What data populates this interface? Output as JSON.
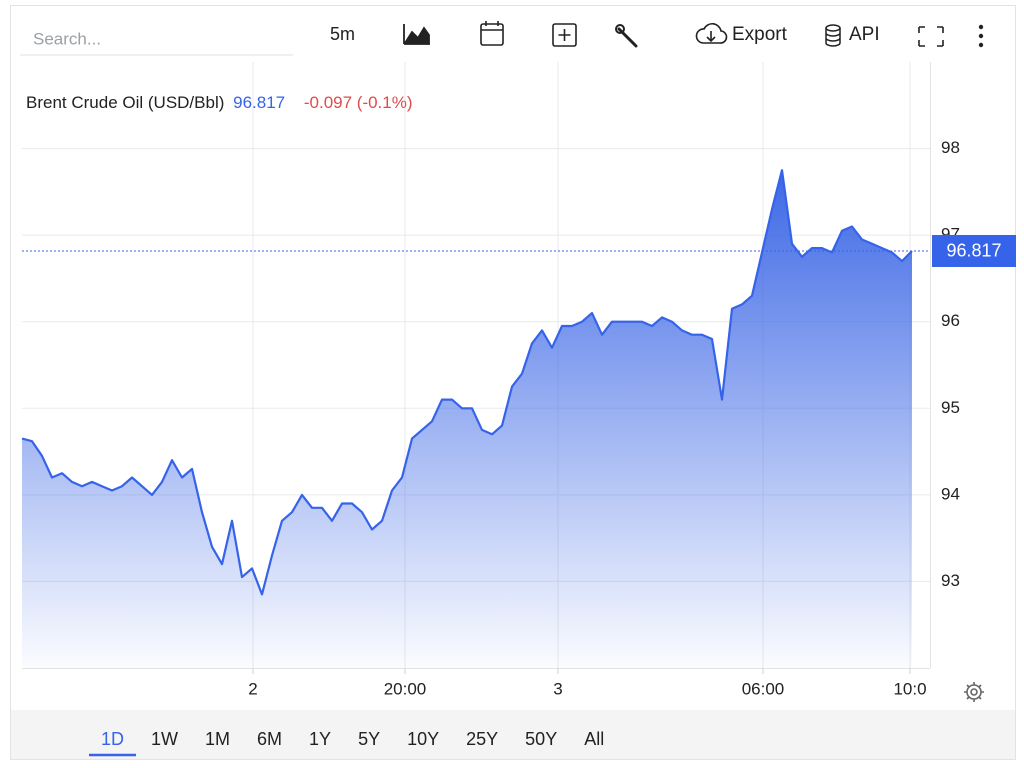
{
  "toolbar": {
    "search_placeholder": "Search...",
    "interval": "5m",
    "export": "Export",
    "api": "API"
  },
  "chart_data": {
    "type": "line",
    "title": "Brent Crude Oil (USD/Bbl)",
    "change": "-0.097 (-0.1%)",
    "last_value": 96.817,
    "series": [
      {
        "name": "Brent Crude Oil",
        "color": "#3563e9",
        "x": [
          0,
          1,
          2,
          3,
          4,
          5,
          6,
          7,
          8,
          9,
          10,
          11,
          12,
          13,
          14,
          15,
          16,
          17,
          18,
          19,
          20,
          21,
          22,
          23,
          24,
          25,
          26,
          27,
          28,
          29,
          30,
          31,
          32,
          33,
          34,
          35,
          36,
          37,
          38,
          39,
          40,
          41,
          42,
          43,
          44,
          45,
          46,
          47,
          48,
          49,
          50,
          51,
          52,
          53,
          54,
          55,
          56,
          57,
          58,
          59,
          60,
          61,
          62,
          63,
          64,
          65,
          66,
          67,
          68,
          69,
          70,
          71,
          72,
          73,
          74,
          75,
          76,
          77,
          78,
          79,
          80,
          81,
          82,
          83,
          84,
          85,
          86,
          87,
          88,
          89
        ],
        "values": [
          94.65,
          94.62,
          94.45,
          94.2,
          94.25,
          94.15,
          94.1,
          94.15,
          94.1,
          94.05,
          94.1,
          94.2,
          94.1,
          94.0,
          94.15,
          94.4,
          94.2,
          94.3,
          93.8,
          93.4,
          93.2,
          93.7,
          93.05,
          93.15,
          92.85,
          93.3,
          93.7,
          93.8,
          94.0,
          93.85,
          93.85,
          93.7,
          93.9,
          93.9,
          93.8,
          93.6,
          93.7,
          94.05,
          94.2,
          94.65,
          94.75,
          94.85,
          95.1,
          95.1,
          95.0,
          95.0,
          94.75,
          94.7,
          94.8,
          95.25,
          95.4,
          95.75,
          95.9,
          95.7,
          95.95,
          95.95,
          96.0,
          96.1,
          95.85,
          96.0,
          96.0,
          96.0,
          96.0,
          95.95,
          96.05,
          96.0,
          95.9,
          95.85,
          95.85,
          95.8,
          95.1,
          96.15,
          96.2,
          96.3,
          96.8,
          97.3,
          97.75,
          96.9,
          96.75,
          96.85,
          96.85,
          96.8,
          97.05,
          97.1,
          96.95,
          96.9,
          96.85,
          96.8,
          96.7,
          96.817
        ]
      }
    ],
    "xlim": [
      0,
      90.8
    ],
    "xticks": [
      {
        "value": 23.1,
        "label": "2"
      },
      {
        "value": 38.3,
        "label": "20:00"
      },
      {
        "value": 53.6,
        "label": "3"
      },
      {
        "value": 74.1,
        "label": "06:00"
      },
      {
        "value": 88.8,
        "label": "10:0"
      }
    ],
    "ylim": [
      92,
      99
    ],
    "yticks": [
      93,
      94,
      95,
      96,
      97,
      98
    ],
    "grid": true
  },
  "ranges": {
    "items": [
      "1D",
      "1W",
      "1M",
      "6M",
      "1Y",
      "5Y",
      "10Y",
      "25Y",
      "50Y",
      "All"
    ],
    "active": 0
  }
}
